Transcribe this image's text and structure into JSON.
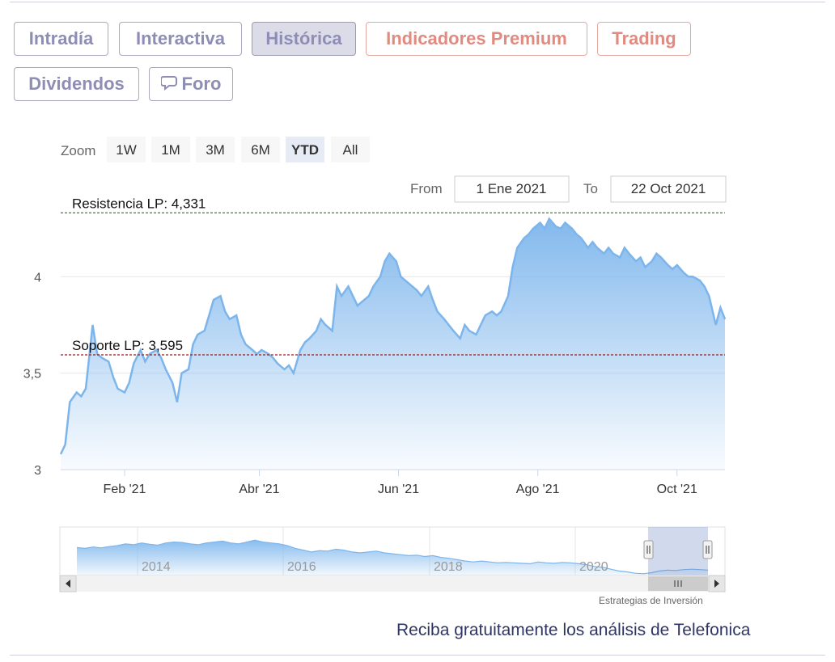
{
  "tabs": [
    {
      "label": "Intradía",
      "style": "normal"
    },
    {
      "label": "Interactiva",
      "style": "normal"
    },
    {
      "label": "Histórica",
      "style": "active"
    },
    {
      "label": "Indicadores Premium",
      "style": "premium"
    },
    {
      "label": "Trading",
      "style": "premium"
    },
    {
      "label": "Dividendos",
      "style": "normal"
    },
    {
      "label": "Foro",
      "style": "normal",
      "icon": "chat-bubble-icon"
    }
  ],
  "zoom": {
    "label": "Zoom",
    "buttons": [
      "1W",
      "1M",
      "3M",
      "6M",
      "YTD",
      "All"
    ],
    "selected": "YTD"
  },
  "range": {
    "from_label": "From",
    "from_value": "1 Ene 2021",
    "to_label": "To",
    "to_value": "22 Oct 2021"
  },
  "chart_data": {
    "type": "area",
    "title": "",
    "xlabel": "",
    "ylabel": "",
    "y_ticks": [
      "3",
      "3,5",
      "4"
    ],
    "y_tick_values": [
      3,
      3.5,
      4
    ],
    "ylim": [
      3,
      4.5
    ],
    "x_ticks": [
      "Feb '21",
      "Abr '21",
      "Jun '21",
      "Ago '21",
      "Oct '21"
    ],
    "x_tick_dates": [
      "2021-02-01",
      "2021-04-01",
      "2021-06-01",
      "2021-08-01",
      "2021-10-01"
    ],
    "xlim": [
      "2021-01-04",
      "2021-10-22"
    ],
    "grid": true,
    "line_color": "#7cb5ec",
    "series": [
      {
        "dates": [
          "2021-01-04",
          "2021-01-06",
          "2021-01-08",
          "2021-01-11",
          "2021-01-13",
          "2021-01-15",
          "2021-01-18",
          "2021-01-20",
          "2021-01-22",
          "2021-01-25",
          "2021-01-27",
          "2021-01-29",
          "2021-02-01",
          "2021-02-03",
          "2021-02-05",
          "2021-02-08",
          "2021-02-10",
          "2021-02-12",
          "2021-02-15",
          "2021-02-17",
          "2021-02-19",
          "2021-02-22",
          "2021-02-24",
          "2021-02-26",
          "2021-03-01",
          "2021-03-03",
          "2021-03-05",
          "2021-03-08",
          "2021-03-10",
          "2021-03-12",
          "2021-03-15",
          "2021-03-17",
          "2021-03-19",
          "2021-03-22",
          "2021-03-24",
          "2021-03-26",
          "2021-03-29",
          "2021-03-31",
          "2021-04-02",
          "2021-04-05",
          "2021-04-07",
          "2021-04-09",
          "2021-04-12",
          "2021-04-14",
          "2021-04-16",
          "2021-04-19",
          "2021-04-21",
          "2021-04-23",
          "2021-04-26",
          "2021-04-28",
          "2021-04-30",
          "2021-05-03",
          "2021-05-05",
          "2021-05-07",
          "2021-05-10",
          "2021-05-12",
          "2021-05-14",
          "2021-05-17",
          "2021-05-19",
          "2021-05-21",
          "2021-05-24",
          "2021-05-26",
          "2021-05-28",
          "2021-05-31",
          "2021-06-02",
          "2021-06-04",
          "2021-06-07",
          "2021-06-09",
          "2021-06-11",
          "2021-06-14",
          "2021-06-16",
          "2021-06-18",
          "2021-06-21",
          "2021-06-23",
          "2021-06-25",
          "2021-06-28",
          "2021-06-30",
          "2021-07-02",
          "2021-07-05",
          "2021-07-07",
          "2021-07-09",
          "2021-07-12",
          "2021-07-14",
          "2021-07-16",
          "2021-07-19",
          "2021-07-21",
          "2021-07-23",
          "2021-07-26",
          "2021-07-28",
          "2021-07-30",
          "2021-08-02",
          "2021-08-04",
          "2021-08-06",
          "2021-08-09",
          "2021-08-11",
          "2021-08-13",
          "2021-08-16",
          "2021-08-18",
          "2021-08-20",
          "2021-08-23",
          "2021-08-25",
          "2021-08-27",
          "2021-08-30",
          "2021-09-01",
          "2021-09-03",
          "2021-09-06",
          "2021-09-08",
          "2021-09-10",
          "2021-09-13",
          "2021-09-15",
          "2021-09-17",
          "2021-09-20",
          "2021-09-22",
          "2021-09-24",
          "2021-09-27",
          "2021-09-29",
          "2021-10-01",
          "2021-10-04",
          "2021-10-06",
          "2021-10-08",
          "2021-10-11",
          "2021-10-13",
          "2021-10-15",
          "2021-10-18",
          "2021-10-20",
          "2021-10-22"
        ],
        "values": [
          3.08,
          3.13,
          3.35,
          3.4,
          3.38,
          3.42,
          3.75,
          3.6,
          3.58,
          3.56,
          3.48,
          3.42,
          3.4,
          3.45,
          3.55,
          3.62,
          3.56,
          3.6,
          3.62,
          3.58,
          3.52,
          3.45,
          3.35,
          3.5,
          3.52,
          3.65,
          3.7,
          3.72,
          3.8,
          3.88,
          3.9,
          3.82,
          3.78,
          3.8,
          3.7,
          3.65,
          3.62,
          3.6,
          3.62,
          3.6,
          3.58,
          3.55,
          3.52,
          3.54,
          3.5,
          3.62,
          3.66,
          3.68,
          3.72,
          3.78,
          3.75,
          3.72,
          3.95,
          3.9,
          3.95,
          3.9,
          3.85,
          3.88,
          3.9,
          3.95,
          4.0,
          4.08,
          4.12,
          4.08,
          4.0,
          3.98,
          3.95,
          3.93,
          3.9,
          3.95,
          3.88,
          3.82,
          3.78,
          3.75,
          3.72,
          3.68,
          3.75,
          3.72,
          3.7,
          3.75,
          3.8,
          3.82,
          3.8,
          3.82,
          3.9,
          4.05,
          4.15,
          4.2,
          4.22,
          4.25,
          4.28,
          4.25,
          4.3,
          4.26,
          4.25,
          4.28,
          4.25,
          4.22,
          4.2,
          4.15,
          4.18,
          4.15,
          4.12,
          4.15,
          4.12,
          4.1,
          4.15,
          4.12,
          4.08,
          4.1,
          4.05,
          4.08,
          4.12,
          4.1,
          4.06,
          4.04,
          4.06,
          4.02,
          4.0,
          4.0,
          3.98,
          3.95,
          3.9,
          3.75,
          3.84,
          3.78
        ]
      }
    ],
    "plot_lines": [
      {
        "label": "Resistencia LP: 4,331",
        "value": 4.331,
        "color": "#1a7a1a"
      },
      {
        "label": "Soporte LP: 3,595",
        "value": 3.595,
        "color": "#a01818"
      }
    ],
    "navigator": {
      "x_ticks": [
        "2014",
        "2016",
        "2018",
        "2020"
      ],
      "values": [
        0.62,
        0.6,
        0.63,
        0.61,
        0.64,
        0.66,
        0.7,
        0.68,
        0.72,
        0.69,
        0.67,
        0.72,
        0.74,
        0.73,
        0.7,
        0.68,
        0.72,
        0.74,
        0.76,
        0.72,
        0.7,
        0.74,
        0.78,
        0.74,
        0.72,
        0.7,
        0.66,
        0.6,
        0.56,
        0.52,
        0.55,
        0.54,
        0.58,
        0.56,
        0.52,
        0.5,
        0.52,
        0.54,
        0.5,
        0.48,
        0.46,
        0.44,
        0.45,
        0.42,
        0.44,
        0.4,
        0.38,
        0.35,
        0.32,
        0.3,
        0.32,
        0.3,
        0.28,
        0.29,
        0.28,
        0.27,
        0.26,
        0.3,
        0.28,
        0.27,
        0.29,
        0.28,
        0.26,
        0.24,
        0.2,
        0.18,
        0.14,
        0.1,
        0.08,
        0.05,
        0.04,
        0.06,
        0.1,
        0.12,
        0.11,
        0.13,
        0.14,
        0.13,
        0.12
      ]
    }
  },
  "credits": "Estrategias de Inversión",
  "footer": {
    "text": "Reciba gratuitamente los análisis de Telefonica"
  }
}
